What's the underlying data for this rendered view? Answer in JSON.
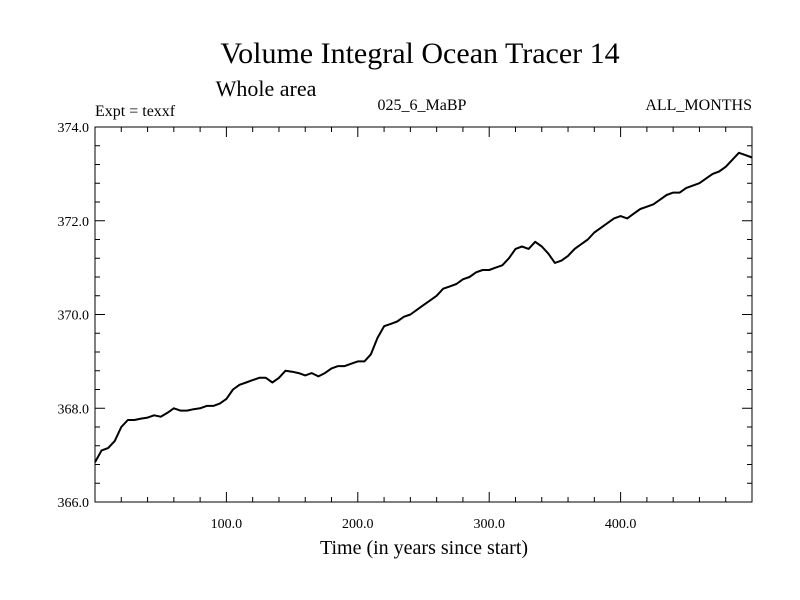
{
  "chart_data": {
    "type": "line",
    "title": "Volume Integral Ocean Tracer 14",
    "subtitle": "Whole area",
    "annotations": {
      "left": "Expt = texxf",
      "center": "025_6_MaBP",
      "right": "ALL_MONTHS"
    },
    "xlabel": "Time (in years since start)",
    "ylabel": "",
    "xlim": [
      0,
      500
    ],
    "ylim": [
      366.0,
      374.0
    ],
    "x_ticks": [
      100,
      200,
      300,
      400
    ],
    "x_tick_labels": [
      "100.0",
      "200.0",
      "300.0",
      "400.0"
    ],
    "y_ticks": [
      366,
      368,
      370,
      372,
      374
    ],
    "y_tick_labels": [
      "366.0",
      "368.0",
      "370.0",
      "372.0",
      "374.0"
    ],
    "grid": false,
    "line_color": "#000000",
    "series": [
      {
        "name": "Volume Integral Ocean Tracer 14",
        "x": [
          0,
          5,
          10,
          15,
          20,
          25,
          30,
          35,
          40,
          45,
          50,
          55,
          60,
          65,
          70,
          75,
          80,
          85,
          90,
          95,
          100,
          105,
          110,
          115,
          120,
          125,
          130,
          135,
          140,
          145,
          150,
          155,
          160,
          165,
          170,
          175,
          180,
          185,
          190,
          195,
          200,
          205,
          210,
          215,
          220,
          225,
          230,
          235,
          240,
          245,
          250,
          255,
          260,
          265,
          270,
          275,
          280,
          285,
          290,
          295,
          300,
          305,
          310,
          315,
          320,
          325,
          330,
          335,
          340,
          345,
          350,
          355,
          360,
          365,
          370,
          375,
          380,
          385,
          390,
          395,
          400,
          405,
          410,
          415,
          420,
          425,
          430,
          435,
          440,
          445,
          450,
          455,
          460,
          465,
          470,
          475,
          480,
          485,
          490,
          495,
          500
        ],
        "values": [
          366.85,
          367.1,
          367.15,
          367.3,
          367.6,
          367.75,
          367.75,
          367.78,
          367.8,
          367.85,
          367.82,
          367.9,
          368.0,
          367.95,
          367.95,
          367.98,
          368.0,
          368.05,
          368.05,
          368.1,
          368.2,
          368.4,
          368.5,
          368.55,
          368.6,
          368.65,
          368.65,
          368.55,
          368.65,
          368.8,
          368.78,
          368.75,
          368.7,
          368.75,
          368.68,
          368.75,
          368.85,
          368.9,
          368.9,
          368.95,
          369.0,
          369.0,
          369.15,
          369.5,
          369.75,
          369.8,
          369.85,
          369.95,
          370.0,
          370.1,
          370.2,
          370.3,
          370.4,
          370.55,
          370.6,
          370.65,
          370.75,
          370.8,
          370.9,
          370.95,
          370.95,
          371.0,
          371.05,
          371.2,
          371.4,
          371.45,
          371.4,
          371.55,
          371.45,
          371.3,
          371.1,
          371.15,
          371.25,
          371.4,
          371.5,
          371.6,
          371.75,
          371.85,
          371.95,
          372.05,
          372.1,
          372.05,
          372.15,
          372.25,
          372.3,
          372.35,
          372.45,
          372.55,
          372.6,
          372.6,
          372.7,
          372.75,
          372.8,
          372.9,
          373.0,
          373.05,
          373.15,
          373.3,
          373.45,
          373.4,
          373.35
        ]
      }
    ]
  }
}
